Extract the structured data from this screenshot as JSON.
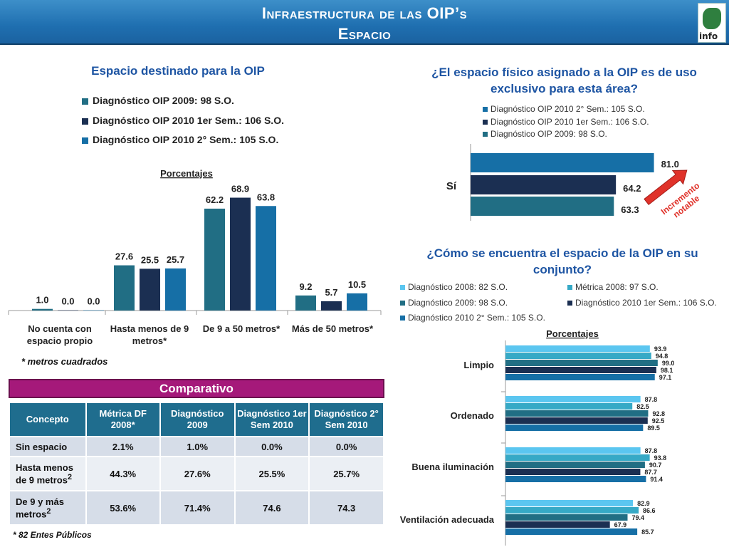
{
  "header": {
    "title_line1": "Infraestructura de las OIP’s",
    "title_line2": "Espacio",
    "logo_text": "info"
  },
  "colors": {
    "diag2009": "#216e84",
    "diag2010_1": "#1b2f52",
    "diag2010_2": "#166fa6",
    "diag2008": "#5bc6f0",
    "metrica2008": "#36a9c6",
    "accent_red": "#e0322a",
    "magenta": "#a5197a"
  },
  "chart_data": [
    {
      "type": "bar",
      "title": "Espacio destinado para la OIP",
      "subtitle": "Porcentajes",
      "categories": [
        "No cuenta con espacio propio",
        "Hasta menos de 9 metros*",
        "De 9 a 50 metros*",
        "Más de 50 metros*"
      ],
      "series": [
        {
          "name": "Diagnóstico OIP 2009: 98 S.O.",
          "values": [
            1.0,
            27.6,
            62.2,
            9.2
          ]
        },
        {
          "name": "Diagnóstico OIP 2010 1er Sem.: 106 S.O.",
          "values": [
            0.0,
            25.5,
            68.9,
            5.7
          ]
        },
        {
          "name": "Diagnóstico OIP 2010 2° Sem.: 105 S.O.",
          "values": [
            0.0,
            25.7,
            63.8,
            10.5
          ]
        }
      ],
      "value_labels": [
        [
          "1.0",
          "27.6",
          "62.2",
          "9.2"
        ],
        [
          "0.0",
          "25.5",
          "68.9",
          "5.7"
        ],
        [
          "0.0",
          "25.7",
          "63.8",
          "10.5"
        ]
      ],
      "note": "* metros cuadrados",
      "ylim": [
        0,
        75
      ]
    },
    {
      "type": "bar",
      "orientation": "horizontal",
      "title": "¿El espacio físico asignado a la OIP es de uso exclusivo para esta área?",
      "categories": [
        "Sí"
      ],
      "series": [
        {
          "name": "Diagnóstico OIP 2010 2° Sem.: 105 S.O.",
          "values": [
            81.0
          ]
        },
        {
          "name": "Diagnóstico OIP 2010 1er Sem.: 106 S.O.",
          "values": [
            64.2
          ]
        },
        {
          "name": "Diagnóstico OIP 2009: 98 S.O.",
          "values": [
            63.3
          ]
        }
      ],
      "value_labels": [
        "81.0",
        "64.2",
        "63.3"
      ],
      "annotation": "Incremento notable",
      "xlim": [
        0,
        100
      ]
    },
    {
      "type": "bar",
      "orientation": "horizontal",
      "title": "¿Cómo se encuentra el espacio de la OIP en su conjunto?",
      "subtitle": "Porcentajes",
      "categories": [
        "Limpio",
        "Ordenado",
        "Buena iluminación",
        "Ventilación adecuada"
      ],
      "series": [
        {
          "name": "Diagnóstico 2008: 82 S.O.",
          "values": [
            93.9,
            87.8,
            87.8,
            82.9
          ]
        },
        {
          "name": "Métrica 2008: 97 S.O.",
          "values": [
            94.8,
            82.5,
            93.8,
            86.6
          ]
        },
        {
          "name": "Diagnóstico 2009: 98 S.O.",
          "values": [
            99.0,
            92.8,
            90.7,
            79.4
          ]
        },
        {
          "name": "Diagnóstico 2010 1er Sem.: 106 S.O.",
          "values": [
            98.1,
            92.5,
            87.7,
            67.9
          ]
        },
        {
          "name": "Diagnóstico 2010 2° Sem.: 105 S.O.",
          "values": [
            97.1,
            89.5,
            91.4,
            85.7
          ]
        }
      ],
      "value_labels": [
        [
          "93.9",
          "87.8",
          "87.8",
          "82.9"
        ],
        [
          "94.8",
          "82.5",
          "93.8",
          "86.6"
        ],
        [
          "99.0",
          "92.8",
          "90.7",
          "79.4"
        ],
        [
          "98.1",
          "92.5",
          "87.7",
          "67.9"
        ],
        [
          "97.1",
          "89.5",
          "91.4",
          "85.7"
        ]
      ],
      "xlim": [
        0,
        100
      ]
    },
    {
      "type": "table",
      "title": "Comparativo",
      "columns": [
        "Concepto",
        "Métrica DF 2008*",
        "Diagnóstico 2009",
        "Diagnóstico 1er Sem 2010",
        "Diagnóstico 2° Sem 2010"
      ],
      "rows": [
        {
          "concepto": "Sin espacio",
          "sup": "",
          "cells": [
            "2.1%",
            "1.0%",
            "0.0%",
            "0.0%"
          ]
        },
        {
          "concepto": "Hasta menos de 9 metros",
          "sup": "2",
          "cells": [
            "44.3%",
            "27.6%",
            "25.5%",
            "25.7%"
          ]
        },
        {
          "concepto": "De 9 y más metros",
          "sup": "2",
          "cells": [
            "53.6%",
            "71.4%",
            "74.6",
            "74.3"
          ]
        }
      ],
      "note": "* 82 Entes Públicos"
    }
  ]
}
